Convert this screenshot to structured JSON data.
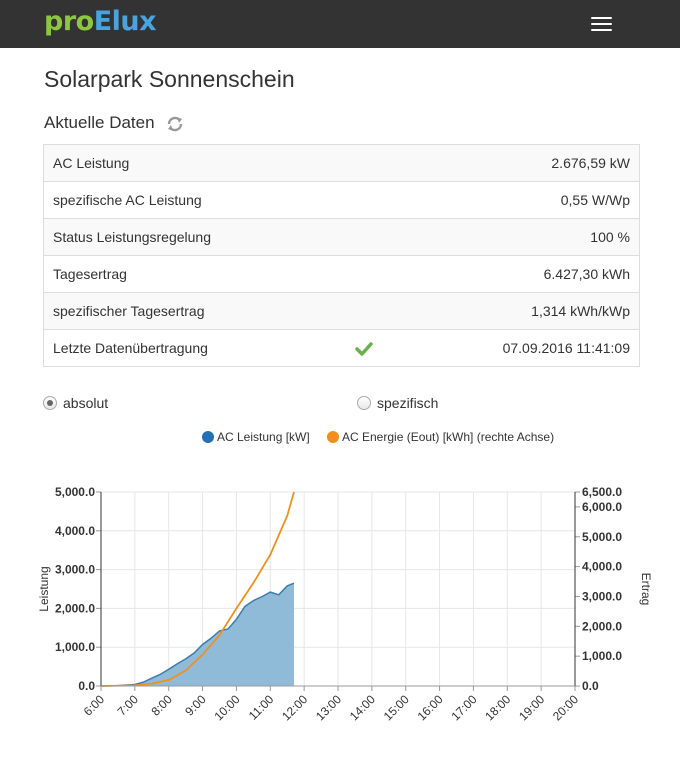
{
  "nav": {
    "logo_part1": "pro",
    "logo_part2": "Elux",
    "menu_icon": "hamburger-icon"
  },
  "page": {
    "title": "Solarpark Sonnenschein",
    "section_title": "Aktuelle Daten",
    "refresh_icon": "refresh-icon"
  },
  "rows": [
    {
      "label": "AC Leistung",
      "value": "2.676,59 kW"
    },
    {
      "label": "spezifische AC Leistung",
      "value": "0,55 W/Wp"
    },
    {
      "label": "Status Leistungsregelung",
      "value": "100 %"
    },
    {
      "label": "Tagesertrag",
      "value": "6.427,30 kWh"
    },
    {
      "label": "spezifischer Tagesertrag",
      "value": "1,314 kWh/kWp"
    },
    {
      "label": "Letzte Datenübertragung",
      "value": "07.09.2016 11:41:09",
      "status_icon": "checkmark-icon"
    }
  ],
  "view_options": {
    "absolute": "absolut",
    "specific": "spezifisch",
    "selected": "absolut"
  },
  "colors": {
    "series1": "#2f7ed8",
    "series1_fill": "#8fbbd9",
    "series1_line": "#3d7dac",
    "series2": "#f28f1c"
  },
  "chart_data": {
    "type": "area",
    "x_categories": [
      "6:00",
      "7:00",
      "8:00",
      "9:00",
      "10:00",
      "11:00",
      "12:00",
      "13:00",
      "14:00",
      "15:00",
      "16:00",
      "17:00",
      "18:00",
      "19:00",
      "20:00"
    ],
    "xlim": [
      6,
      20
    ],
    "left_axis": {
      "title": "Leistung",
      "ylim": [
        0,
        5000
      ],
      "ticks": [
        "0.0",
        "1,000.0",
        "2,000.0",
        "3,000.0",
        "4,000.0",
        "5,000.0"
      ]
    },
    "right_axis": {
      "title": "Ertrag",
      "ylim": [
        0,
        6500
      ],
      "ticks": [
        "0.0",
        "1,000.0",
        "2,000.0",
        "3,000.0",
        "4,000.0",
        "5,000.0",
        "6,000.0",
        "6,500.0"
      ]
    },
    "series": [
      {
        "name": "AC Leistung [kW]",
        "type": "area",
        "axis": "left",
        "x": [
          6.0,
          6.5,
          7.0,
          7.25,
          7.5,
          7.75,
          8.0,
          8.25,
          8.5,
          8.75,
          9.0,
          9.25,
          9.5,
          9.75,
          10.0,
          10.25,
          10.5,
          10.75,
          11.0,
          11.25,
          11.5,
          11.7
        ],
        "values": [
          0,
          10,
          40,
          100,
          200,
          300,
          430,
          570,
          700,
          850,
          1070,
          1230,
          1420,
          1470,
          1720,
          2050,
          2200,
          2300,
          2420,
          2350,
          2580,
          2650
        ]
      },
      {
        "name": "AC Energie (Eout) [kWh] (rechte Achse)",
        "type": "line",
        "axis": "right",
        "x": [
          6.0,
          7.0,
          7.5,
          8.0,
          8.5,
          9.0,
          9.5,
          10.0,
          10.5,
          11.0,
          11.5,
          11.7
        ],
        "values": [
          0,
          20,
          80,
          200,
          520,
          1050,
          1700,
          2600,
          3450,
          4400,
          5700,
          6500
        ]
      }
    ],
    "grid": true,
    "legend": "top-center"
  }
}
